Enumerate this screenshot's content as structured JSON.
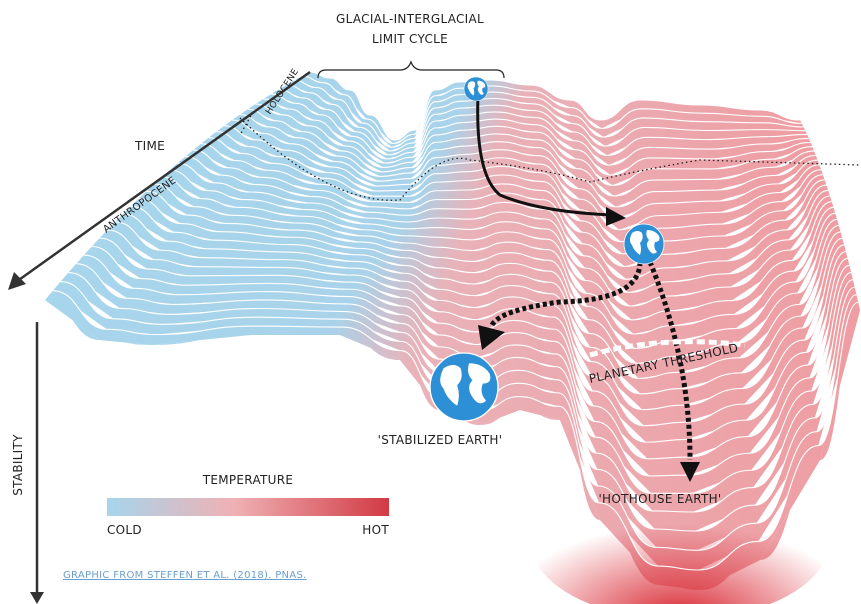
{
  "title": {
    "line1": "GLACIAL-INTERGLACIAL",
    "line2": "LIMIT CYCLE"
  },
  "labels": {
    "holocene": "HOLOCENE",
    "time": "TIME",
    "anthropocene": "ANTHROPOCENE",
    "stability": "STABILITY",
    "stabilized_earth": "'STABILIZED EARTH'",
    "planetary_threshold": "PLANETARY THRESHOLD",
    "hothouse_earth": "'HOTHOUSE EARTH'"
  },
  "legend": {
    "title": "TEMPERATURE",
    "low": "COLD",
    "high": "HOT"
  },
  "credit": "GRAPHIC FROM STEFFEN ET AL. (2018). PNAS."
}
